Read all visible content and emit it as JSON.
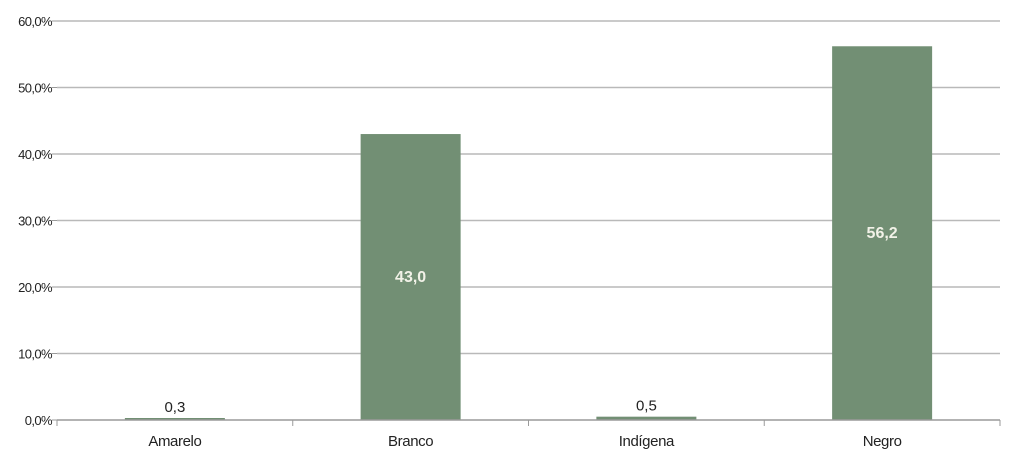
{
  "colors": {
    "bar": "#728f74",
    "grid": "#b9b9b9",
    "axis": "#9a9a9a",
    "text": "#222222",
    "label_inside": "#f2f2e8"
  },
  "chart_data": {
    "type": "bar",
    "categories": [
      "Amarelo",
      "Branco",
      "Indígena",
      "Negro"
    ],
    "values": [
      0.3,
      43.0,
      0.5,
      56.2
    ],
    "value_labels": [
      "0,3",
      "43,0",
      "0,5",
      "56,2"
    ],
    "y_ticks": [
      "0,0%",
      "10,0%",
      "20,0%",
      "30,0%",
      "40,0%",
      "50,0%",
      "60,0%"
    ],
    "ylim": [
      0,
      60
    ],
    "grid": true,
    "legend": "none",
    "title": "",
    "xlabel": "",
    "ylabel": ""
  }
}
